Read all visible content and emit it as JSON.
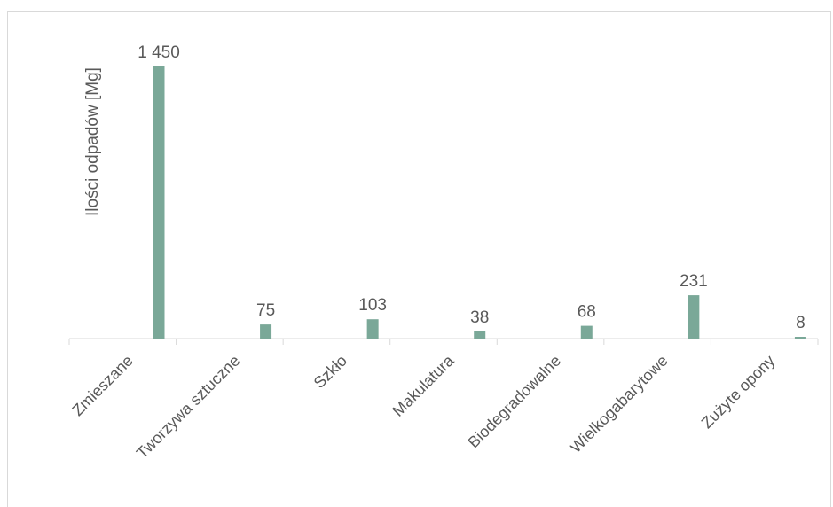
{
  "chart_data": {
    "type": "bar",
    "categories": [
      "Zmieszane",
      "Tworzywa sztuczne",
      "Szkło",
      "Makulatura",
      "Biodegradowalne",
      "Wielkogabarytowe",
      "Zużyte opony"
    ],
    "values": [
      1450,
      75,
      103,
      38,
      68,
      231,
      8
    ],
    "value_labels": [
      "1 450",
      "75",
      "103",
      "38",
      "68",
      "231",
      "8"
    ],
    "title": "",
    "xlabel": "",
    "ylabel": "Ilości odpadów [Mg]",
    "ylim": [
      0,
      1450
    ],
    "bar_color": "#7aa898",
    "axis_color": "#d9d9d9",
    "text_color": "#595959",
    "grid": false,
    "legend": false
  }
}
